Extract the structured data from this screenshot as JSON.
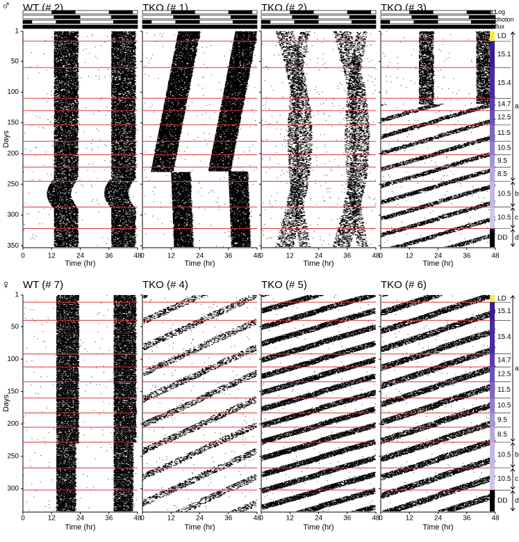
{
  "x_axis": {
    "label": "Time (hr)",
    "ticks": [
      0,
      12,
      24,
      36,
      48
    ],
    "xlim": [
      0,
      48
    ]
  },
  "y_label": "Days",
  "legend": [
    {
      "key": "a",
      "text": "Log"
    },
    {
      "key": "b",
      "text": "photon"
    },
    {
      "key": "c"
    },
    {
      "key": "d",
      "text": "flux"
    }
  ],
  "condition_colors": [
    "#f4e94a",
    "#3b1e8c",
    "#4a2c9c",
    "#5b3eaa",
    "#6d52b6",
    "#7f66c1",
    "#9180cb",
    "#a495d4",
    "#b6a9dc",
    "#c2b6e2",
    "#cfc5e8",
    "#000000"
  ],
  "rows": [
    {
      "symbol": "♂",
      "ylim": [
        1,
        352
      ],
      "yticks": [
        1,
        50,
        100,
        150,
        200,
        250,
        300,
        350
      ],
      "panels": [
        {
          "title": "WT (# 2)",
          "color": "#000000"
        },
        {
          "title": "TKO (# 1)",
          "color": "#1a1a8c"
        },
        {
          "title": "TKO (# 2)",
          "color": "#1a1a8c"
        },
        {
          "title": "TKO (# 3)",
          "color": "#1a1a8c"
        }
      ],
      "transitions": [
        17,
        60,
        110,
        130,
        153,
        180,
        202,
        222,
        245,
        287,
        322
      ],
      "conditions": [
        "LD",
        "15.1",
        "15.4",
        "14.7",
        "12.5",
        "11.5",
        "10.5",
        "9.5",
        "8.5",
        "10.5",
        "10.5",
        "DD"
      ],
      "brackets": [
        "a",
        "b",
        "c",
        "d"
      ]
    },
    {
      "symbol": "♀",
      "ylim": [
        1,
        335
      ],
      "yticks": [
        1,
        50,
        100,
        150,
        200,
        250,
        300
      ],
      "panels": [
        {
          "title": "WT (# 7)",
          "color": "#000000"
        },
        {
          "title": "TKO (# 4)",
          "color": "#1a1a8c"
        },
        {
          "title": "TKO (# 5)",
          "color": "#1a1a8c"
        },
        {
          "title": "TKO (# 6)",
          "color": "#1a1a8c"
        }
      ],
      "transitions": [
        12,
        40,
        92,
        112,
        135,
        160,
        183,
        205,
        228,
        268,
        302
      ],
      "conditions": [
        "LD",
        "15.1",
        "15.4",
        "14.7",
        "12.5",
        "11.5",
        "10.5",
        "9.5",
        "8.5",
        "10.5",
        "10.5",
        "DD"
      ],
      "brackets": [
        "a",
        "b",
        "c",
        "d"
      ]
    }
  ]
}
